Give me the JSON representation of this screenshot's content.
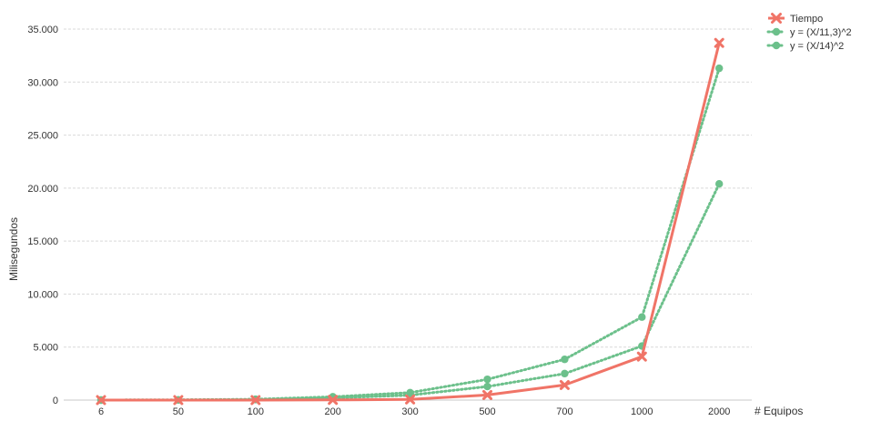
{
  "chart_data": {
    "type": "line",
    "title": "",
    "xlabel": "# Equipos",
    "ylabel": "Milisegundos",
    "categories": [
      "6",
      "50",
      "100",
      "200",
      "300",
      "500",
      "700",
      "1000",
      "2000"
    ],
    "ylim": [
      0,
      35000
    ],
    "yticks": [
      0,
      5000,
      10000,
      15000,
      20000,
      25000,
      30000,
      35000
    ],
    "ytick_labels": [
      "0",
      "5.000",
      "10.000",
      "15.000",
      "20.000",
      "25.000",
      "30.000",
      "35.000"
    ],
    "grid": true,
    "legend_position": "top-right",
    "series": [
      {
        "name": "Tiempo",
        "color": "#F07467",
        "marker": "x",
        "line_style": "solid",
        "values": [
          0,
          0,
          0,
          20,
          60,
          480,
          1420,
          4100,
          33700
        ]
      },
      {
        "name": "y = (X/11,3)^2",
        "color": "#6CC08B",
        "marker": "circle",
        "line_style": "dotted",
        "values": [
          0,
          20,
          80,
          310,
          700,
          1960,
          3840,
          7830,
          31300
        ]
      },
      {
        "name": "y = (X/14)^2",
        "color": "#6CC08B",
        "marker": "circle",
        "line_style": "dotted",
        "values": [
          0,
          13,
          50,
          200,
          460,
          1280,
          2500,
          5100,
          20400
        ]
      }
    ]
  }
}
